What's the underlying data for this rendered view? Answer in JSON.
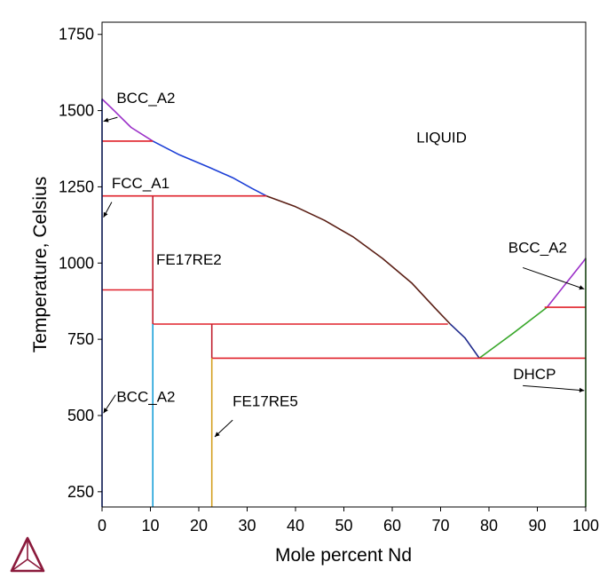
{
  "chart_data": {
    "type": "line",
    "title": "",
    "xlabel": "Mole percent Nd",
    "ylabel": "Temperature, Celsius",
    "xlim": [
      0,
      100
    ],
    "ylim": [
      200,
      1790
    ],
    "x_ticks": [
      0,
      10,
      20,
      30,
      40,
      50,
      60,
      70,
      80,
      90,
      100
    ],
    "y_ticks": [
      250,
      500,
      750,
      1000,
      1250,
      1500,
      1750
    ],
    "grid": false,
    "legend": "none",
    "colors": {
      "liquidus_bcc": "#9b30c8",
      "liquidus_fcc": "#1c3fd6",
      "liquidus_fe17re2": "#5a1e14",
      "liquidus_fe17re5": "#1f2a8c",
      "liquidus_dhcp": "#3aa82c",
      "invariant": "#e0202a",
      "fe_solvus": "#1c3fd6",
      "fe17re2_line": "#c02030",
      "fe17re2_below": "#1aa0d8",
      "fe17re5_line": "#c02030",
      "fe17re5_below": "#d4a020",
      "nd_side": "#3aa82c"
    },
    "series": [
      {
        "key": "liquidus_bcc",
        "points": [
          [
            0,
            1538
          ],
          [
            2.5,
            1500
          ],
          [
            6,
            1445
          ],
          [
            10.5,
            1400
          ]
        ]
      },
      {
        "key": "liquidus_fcc",
        "points": [
          [
            10.5,
            1400
          ],
          [
            16,
            1355
          ],
          [
            22,
            1315
          ],
          [
            27,
            1280
          ],
          [
            31,
            1245
          ],
          [
            34,
            1220
          ]
        ]
      },
      {
        "key": "liquidus_fe17re2",
        "points": [
          [
            34,
            1220
          ],
          [
            40,
            1185
          ],
          [
            46,
            1140
          ],
          [
            52,
            1085
          ],
          [
            58,
            1015
          ],
          [
            64,
            935
          ],
          [
            69,
            850
          ],
          [
            72,
            800
          ]
        ]
      },
      {
        "key": "liquidus_fe17re5",
        "points": [
          [
            72,
            800
          ],
          [
            75,
            755
          ],
          [
            78,
            688
          ]
        ]
      },
      {
        "key": "liquidus_dhcp",
        "points": [
          [
            78,
            688
          ],
          [
            85,
            770
          ],
          [
            92,
            855
          ]
        ]
      },
      {
        "key": "liquidus_bcc",
        "points": [
          [
            92,
            855
          ],
          [
            96,
            935
          ],
          [
            99.5,
            1005
          ],
          [
            100,
            1016
          ]
        ]
      },
      {
        "key": "invariant",
        "points": [
          [
            0,
            1400
          ],
          [
            10.5,
            1400
          ]
        ]
      },
      {
        "key": "invariant",
        "points": [
          [
            0,
            1220
          ],
          [
            34,
            1220
          ]
        ]
      },
      {
        "key": "invariant",
        "points": [
          [
            0,
            912
          ],
          [
            10.5,
            912
          ]
        ]
      },
      {
        "key": "invariant",
        "points": [
          [
            10.5,
            800
          ],
          [
            71.5,
            800
          ]
        ]
      },
      {
        "key": "invariant",
        "points": [
          [
            22.7,
            688
          ],
          [
            100,
            688
          ]
        ]
      },
      {
        "key": "invariant",
        "points": [
          [
            91.5,
            855
          ],
          [
            100,
            855
          ]
        ]
      },
      {
        "key": "fe_solvus",
        "points": [
          [
            0,
            200
          ],
          [
            0,
            1538
          ]
        ]
      },
      {
        "key": "fe17re2_line",
        "points": [
          [
            10.5,
            800
          ],
          [
            10.5,
            1220
          ]
        ]
      },
      {
        "key": "fe17re2_below",
        "points": [
          [
            10.5,
            200
          ],
          [
            10.5,
            800
          ]
        ]
      },
      {
        "key": "fe17re5_line",
        "points": [
          [
            22.7,
            688
          ],
          [
            22.7,
            800
          ]
        ]
      },
      {
        "key": "fe17re5_below",
        "points": [
          [
            22.7,
            200
          ],
          [
            22.7,
            688
          ]
        ]
      },
      {
        "key": "nd_side",
        "points": [
          [
            100,
            200
          ],
          [
            100,
            1016
          ]
        ]
      }
    ],
    "labels": [
      {
        "text": "BCC_A2",
        "x": 3,
        "y": 1525
      },
      {
        "text": "LIQUID",
        "x": 65,
        "y": 1395
      },
      {
        "text": "FCC_A1",
        "x": 2,
        "y": 1245
      },
      {
        "text": "FE17RE2",
        "x": 11.2,
        "y": 995
      },
      {
        "text": "BCC_A2",
        "x": 84,
        "y": 1035
      },
      {
        "text": "DHCP",
        "x": 85,
        "y": 620
      },
      {
        "text": "BCC_A2",
        "x": 3,
        "y": 545
      },
      {
        "text": "FE17RE5",
        "x": 27,
        "y": 530
      }
    ],
    "arrows": [
      {
        "from": [
          3.2,
          1478
        ],
        "to": [
          0.3,
          1465
        ]
      },
      {
        "from": [
          2,
          1200
        ],
        "to": [
          0.3,
          1150
        ]
      },
      {
        "from": [
          87,
          985
        ],
        "to": [
          99.7,
          915
        ]
      },
      {
        "from": [
          87,
          598
        ],
        "to": [
          99.7,
          582
        ]
      },
      {
        "from": [
          2.8,
          568
        ],
        "to": [
          0.3,
          508
        ]
      },
      {
        "from": [
          27,
          485
        ],
        "to": [
          23.3,
          430
        ]
      }
    ]
  }
}
